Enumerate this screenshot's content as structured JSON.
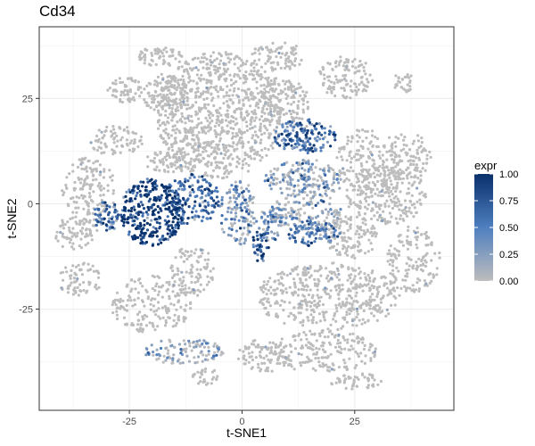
{
  "chart_data": {
    "type": "scatter",
    "title": "Cd34",
    "xlabel": "t-SNE1",
    "ylabel": "t-SNE2",
    "xlim": [
      -45,
      47
    ],
    "ylim": [
      -49,
      42
    ],
    "x_ticks": [
      -25,
      0,
      25
    ],
    "y_ticks": [
      -25,
      0,
      25
    ],
    "x_tick_labels": [
      "-25",
      "0",
      "25"
    ],
    "y_tick_labels": [
      "-25",
      "0",
      "25"
    ],
    "grid": true,
    "legend": {
      "title": "expr",
      "position": "right",
      "ticks": [
        1.0,
        0.75,
        0.5,
        0.25,
        0.0
      ],
      "tick_labels": [
        "1.00",
        "0.75",
        "0.50",
        "0.25",
        "0.00"
      ],
      "low_color": "#bdbdbd",
      "mid_color": "#4f7fbf",
      "high_color": "#08306b"
    },
    "clusters": [
      {
        "cx": -5,
        "cy": 21,
        "rx": 14,
        "ry": 15,
        "n": 900,
        "expr": 0.03
      },
      {
        "cx": -26,
        "cy": 27,
        "rx": 4,
        "ry": 3,
        "n": 60,
        "expr": 0.02
      },
      {
        "cx": -17,
        "cy": 26,
        "rx": 5,
        "ry": 5,
        "n": 110,
        "expr": 0.02
      },
      {
        "cx": -18,
        "cy": 35,
        "rx": 5,
        "ry": 2.5,
        "n": 60,
        "expr": 0.02
      },
      {
        "cx": 8,
        "cy": 35,
        "rx": 6,
        "ry": 3.5,
        "n": 80,
        "expr": 0.03
      },
      {
        "cx": 9,
        "cy": 24,
        "rx": 6,
        "ry": 6,
        "n": 140,
        "expr": 0.03
      },
      {
        "cx": 23,
        "cy": 30,
        "rx": 6,
        "ry": 5,
        "n": 120,
        "expr": 0.02
      },
      {
        "cx": 36,
        "cy": 29,
        "rx": 2.5,
        "ry": 2.5,
        "n": 30,
        "expr": 0.02
      },
      {
        "cx": 14,
        "cy": 16,
        "rx": 7,
        "ry": 4,
        "n": 160,
        "expr": 0.55
      },
      {
        "cx": 28,
        "cy": 10,
        "rx": 7,
        "ry": 8,
        "n": 180,
        "expr": 0.02
      },
      {
        "cx": 37,
        "cy": 11,
        "rx": 5,
        "ry": 6,
        "n": 90,
        "expr": 0.02
      },
      {
        "cx": 14,
        "cy": 6,
        "rx": 9,
        "ry": 4.5,
        "n": 180,
        "expr": 0.15
      },
      {
        "cx": 32,
        "cy": 2,
        "rx": 9,
        "ry": 7,
        "n": 220,
        "expr": 0.02
      },
      {
        "cx": 14,
        "cy": -2,
        "rx": 8,
        "ry": 5,
        "n": 170,
        "expr": 0.1
      },
      {
        "cx": 16,
        "cy": -7,
        "rx": 6,
        "ry": 3,
        "n": 90,
        "expr": 0.45
      },
      {
        "cx": 24,
        "cy": -8,
        "rx": 6,
        "ry": 5,
        "n": 110,
        "expr": 0.02
      },
      {
        "cx": 38,
        "cy": -13,
        "rx": 6,
        "ry": 8,
        "n": 140,
        "expr": 0.02
      },
      {
        "cx": 4,
        "cy": -10,
        "rx": 2,
        "ry": 4,
        "n": 45,
        "expr": 0.65
      },
      {
        "cx": 6,
        "cy": -5,
        "rx": 3,
        "ry": 4,
        "n": 50,
        "expr": 0.3
      },
      {
        "cx": -20,
        "cy": -2,
        "rx": 7,
        "ry": 8,
        "n": 330,
        "expr": 0.88
      },
      {
        "cx": -11,
        "cy": 1,
        "rx": 6,
        "ry": 6,
        "n": 170,
        "expr": 0.55
      },
      {
        "cx": -1,
        "cy": -2,
        "rx": 4,
        "ry": 8,
        "n": 130,
        "expr": 0.25
      },
      {
        "cx": -30,
        "cy": -3,
        "rx": 3,
        "ry": 3.5,
        "n": 60,
        "expr": 0.5
      },
      {
        "cx": -34,
        "cy": 3,
        "rx": 6,
        "ry": 8,
        "n": 150,
        "expr": 0.03
      },
      {
        "cx": -37,
        "cy": -7,
        "rx": 5,
        "ry": 4,
        "n": 70,
        "expr": 0.02
      },
      {
        "cx": -36,
        "cy": -18,
        "rx": 5,
        "ry": 4,
        "n": 70,
        "expr": 0.02
      },
      {
        "cx": -11,
        "cy": -16,
        "rx": 5,
        "ry": 6,
        "n": 100,
        "expr": 0.03
      },
      {
        "cx": -20,
        "cy": -24,
        "rx": 9,
        "ry": 7,
        "n": 180,
        "expr": 0.03
      },
      {
        "cx": -13,
        "cy": -35,
        "rx": 9,
        "ry": 3,
        "n": 110,
        "expr": 0.12
      },
      {
        "cx": 19,
        "cy": -22,
        "rx": 16,
        "ry": 8,
        "n": 450,
        "expr": 0.02
      },
      {
        "cx": 18,
        "cy": -35,
        "rx": 12,
        "ry": 5,
        "n": 200,
        "expr": 0.02
      },
      {
        "cx": 5,
        "cy": -36,
        "rx": 6,
        "ry": 4,
        "n": 80,
        "expr": 0.02
      },
      {
        "cx": -8,
        "cy": -41,
        "rx": 3,
        "ry": 2,
        "n": 30,
        "expr": 0.02
      },
      {
        "cx": 25,
        "cy": -42,
        "rx": 6,
        "ry": 2,
        "n": 50,
        "expr": 0.02
      },
      {
        "cx": -16,
        "cy": 10,
        "rx": 6,
        "ry": 2.5,
        "n": 80,
        "expr": 0.03
      },
      {
        "cx": -28,
        "cy": 15,
        "rx": 6,
        "ry": 3.5,
        "n": 80,
        "expr": 0.02
      }
    ]
  }
}
